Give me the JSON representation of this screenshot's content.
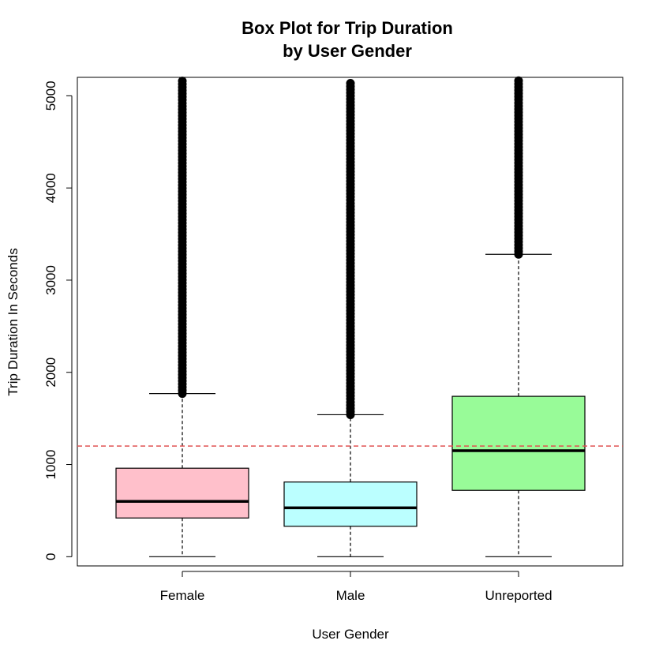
{
  "chart_data": {
    "type": "boxplot",
    "title": "Box Plot for Trip Duration",
    "subtitle": "by User Gender",
    "xlabel": "User Gender",
    "ylabel": "Trip Duration In Seconds",
    "ylim": [
      -100,
      5200
    ],
    "yticks": [
      0,
      1000,
      2000,
      3000,
      4000,
      5000
    ],
    "ytick_labels": [
      "0",
      "1000",
      "2000",
      "3000",
      "4000",
      "5000"
    ],
    "reference_line": {
      "value": 1200,
      "color": "#e05050",
      "style": "dashed"
    },
    "groups": [
      {
        "name": "Female",
        "color": "#ffc0cb",
        "whisker_low": 0,
        "q1": 420,
        "median": 600,
        "q3": 960,
        "whisker_high": 1770,
        "outliers_from": 1770,
        "outliers_to": 5200
      },
      {
        "name": "Male",
        "color": "#bbffff",
        "whisker_low": 0,
        "q1": 330,
        "median": 530,
        "q3": 810,
        "whisker_high": 1540,
        "outliers_from": 1540,
        "outliers_to": 5200
      },
      {
        "name": "Unreported",
        "color": "#98fb98",
        "whisker_low": 0,
        "q1": 720,
        "median": 1150,
        "q3": 1740,
        "whisker_high": 3280,
        "outliers_from": 3280,
        "outliers_to": 5200
      }
    ],
    "grid": false,
    "legend": "none"
  }
}
